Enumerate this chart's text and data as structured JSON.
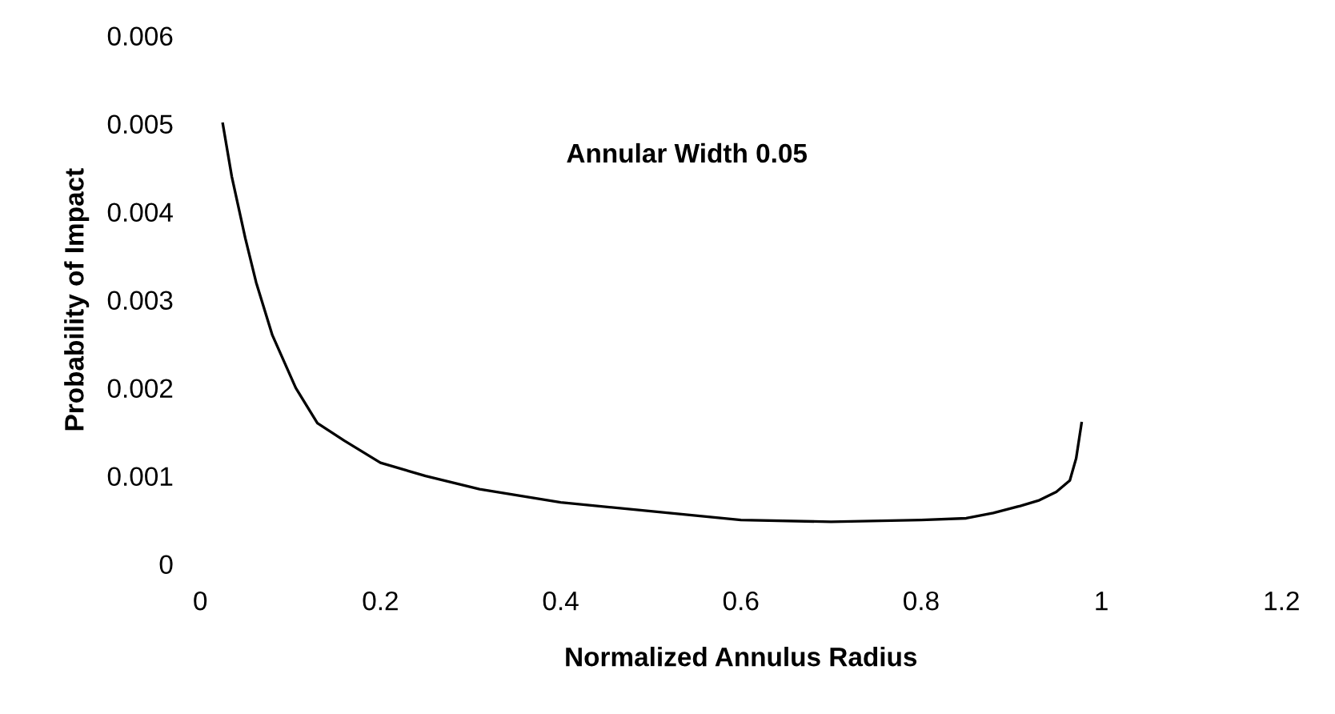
{
  "chart_data": {
    "type": "line",
    "xlabel": "Normalized Annulus Radius",
    "ylabel": "Probability of Impact",
    "annotations": [
      "Annular Width 0.05"
    ],
    "x": [
      0.025,
      0.035,
      0.05,
      0.062,
      0.08,
      0.106,
      0.13,
      0.16,
      0.2,
      0.25,
      0.31,
      0.4,
      0.5,
      0.6,
      0.7,
      0.8,
      0.85,
      0.88,
      0.91,
      0.93,
      0.95,
      0.965,
      0.972,
      0.978
    ],
    "series": [
      {
        "color": "#000000",
        "values": [
          0.005,
          0.0044,
          0.0037,
          0.0032,
          0.0026,
          0.002,
          0.0016,
          0.0014,
          0.00115,
          0.001,
          0.00085,
          0.0007,
          0.0006,
          0.0005,
          0.00048,
          0.0005,
          0.00052,
          0.00058,
          0.00066,
          0.00072,
          0.00082,
          0.00095,
          0.0012,
          0.0016
        ]
      }
    ],
    "xlim": [
      0,
      1.2
    ],
    "xticks": [
      0,
      0.2,
      0.4,
      0.6,
      0.8,
      1,
      1.2
    ],
    "ylim": [
      0,
      0.006
    ],
    "yticks": [
      0,
      0.001,
      0.002,
      0.003,
      0.004,
      0.005,
      0.006
    ],
    "grid": false,
    "legend": false,
    "marker": "none",
    "line_style": "solid"
  }
}
